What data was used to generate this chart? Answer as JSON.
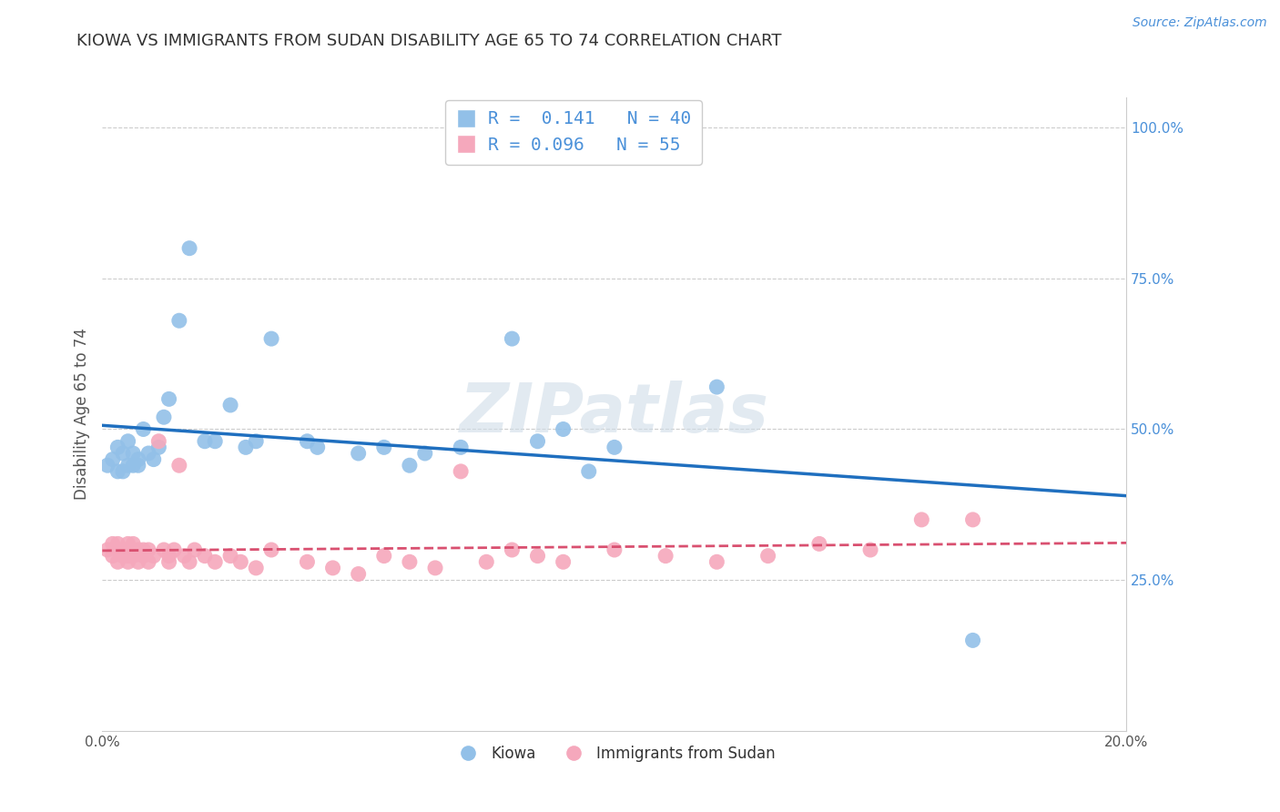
{
  "title": "KIOWA VS IMMIGRANTS FROM SUDAN DISABILITY AGE 65 TO 74 CORRELATION CHART",
  "source_text": "Source: ZipAtlas.com",
  "xlabel": "",
  "ylabel": "Disability Age 65 to 74",
  "xlim": [
    0.0,
    0.2
  ],
  "ylim": [
    0.0,
    1.05
  ],
  "yticks": [
    0.25,
    0.5,
    0.75,
    1.0
  ],
  "ytick_labels": [
    "25.0%",
    "50.0%",
    "75.0%",
    "100.0%"
  ],
  "xticks": [
    0.0,
    0.05,
    0.1,
    0.15,
    0.2
  ],
  "xtick_labels": [
    "0.0%",
    "",
    "",
    "",
    "20.0%"
  ],
  "watermark": "ZIPatlas",
  "legend_r1": "R =  0.141   N = 40",
  "legend_r2": "R = 0.096   N = 55",
  "series1_label": "Kiowa",
  "series2_label": "Immigrants from Sudan",
  "series1_color": "#92c0e8",
  "series2_color": "#f5a8bc",
  "trend1_color": "#1f6fbf",
  "trend2_color": "#d95070",
  "background_color": "#ffffff",
  "grid_color": "#cccccc",
  "kiowa_x": [
    0.001,
    0.002,
    0.003,
    0.003,
    0.004,
    0.004,
    0.005,
    0.005,
    0.006,
    0.006,
    0.007,
    0.007,
    0.008,
    0.009,
    0.01,
    0.011,
    0.012,
    0.013,
    0.015,
    0.017,
    0.02,
    0.022,
    0.025,
    0.028,
    0.03,
    0.033,
    0.04,
    0.042,
    0.05,
    0.055,
    0.06,
    0.063,
    0.07,
    0.08,
    0.085,
    0.09,
    0.095,
    0.1,
    0.12,
    0.17
  ],
  "kiowa_y": [
    0.44,
    0.45,
    0.43,
    0.47,
    0.43,
    0.46,
    0.44,
    0.48,
    0.44,
    0.46,
    0.44,
    0.45,
    0.5,
    0.46,
    0.45,
    0.47,
    0.52,
    0.55,
    0.68,
    0.8,
    0.48,
    0.48,
    0.54,
    0.47,
    0.48,
    0.65,
    0.48,
    0.47,
    0.46,
    0.47,
    0.44,
    0.46,
    0.47,
    0.65,
    0.48,
    0.5,
    0.43,
    0.47,
    0.57,
    0.15
  ],
  "sudan_x": [
    0.001,
    0.002,
    0.002,
    0.003,
    0.003,
    0.003,
    0.004,
    0.004,
    0.005,
    0.005,
    0.005,
    0.006,
    0.006,
    0.006,
    0.007,
    0.007,
    0.008,
    0.008,
    0.009,
    0.009,
    0.01,
    0.011,
    0.012,
    0.013,
    0.013,
    0.014,
    0.015,
    0.016,
    0.017,
    0.018,
    0.02,
    0.022,
    0.025,
    0.027,
    0.03,
    0.033,
    0.04,
    0.045,
    0.05,
    0.055,
    0.06,
    0.065,
    0.07,
    0.075,
    0.08,
    0.085,
    0.09,
    0.1,
    0.11,
    0.12,
    0.13,
    0.14,
    0.15,
    0.16,
    0.17
  ],
  "sudan_y": [
    0.3,
    0.31,
    0.29,
    0.3,
    0.31,
    0.28,
    0.29,
    0.3,
    0.28,
    0.29,
    0.31,
    0.3,
    0.29,
    0.31,
    0.3,
    0.28,
    0.3,
    0.29,
    0.28,
    0.3,
    0.29,
    0.48,
    0.3,
    0.29,
    0.28,
    0.3,
    0.44,
    0.29,
    0.28,
    0.3,
    0.29,
    0.28,
    0.29,
    0.28,
    0.27,
    0.3,
    0.28,
    0.27,
    0.26,
    0.29,
    0.28,
    0.27,
    0.43,
    0.28,
    0.3,
    0.29,
    0.28,
    0.3,
    0.29,
    0.28,
    0.29,
    0.31,
    0.3,
    0.35,
    0.35
  ]
}
